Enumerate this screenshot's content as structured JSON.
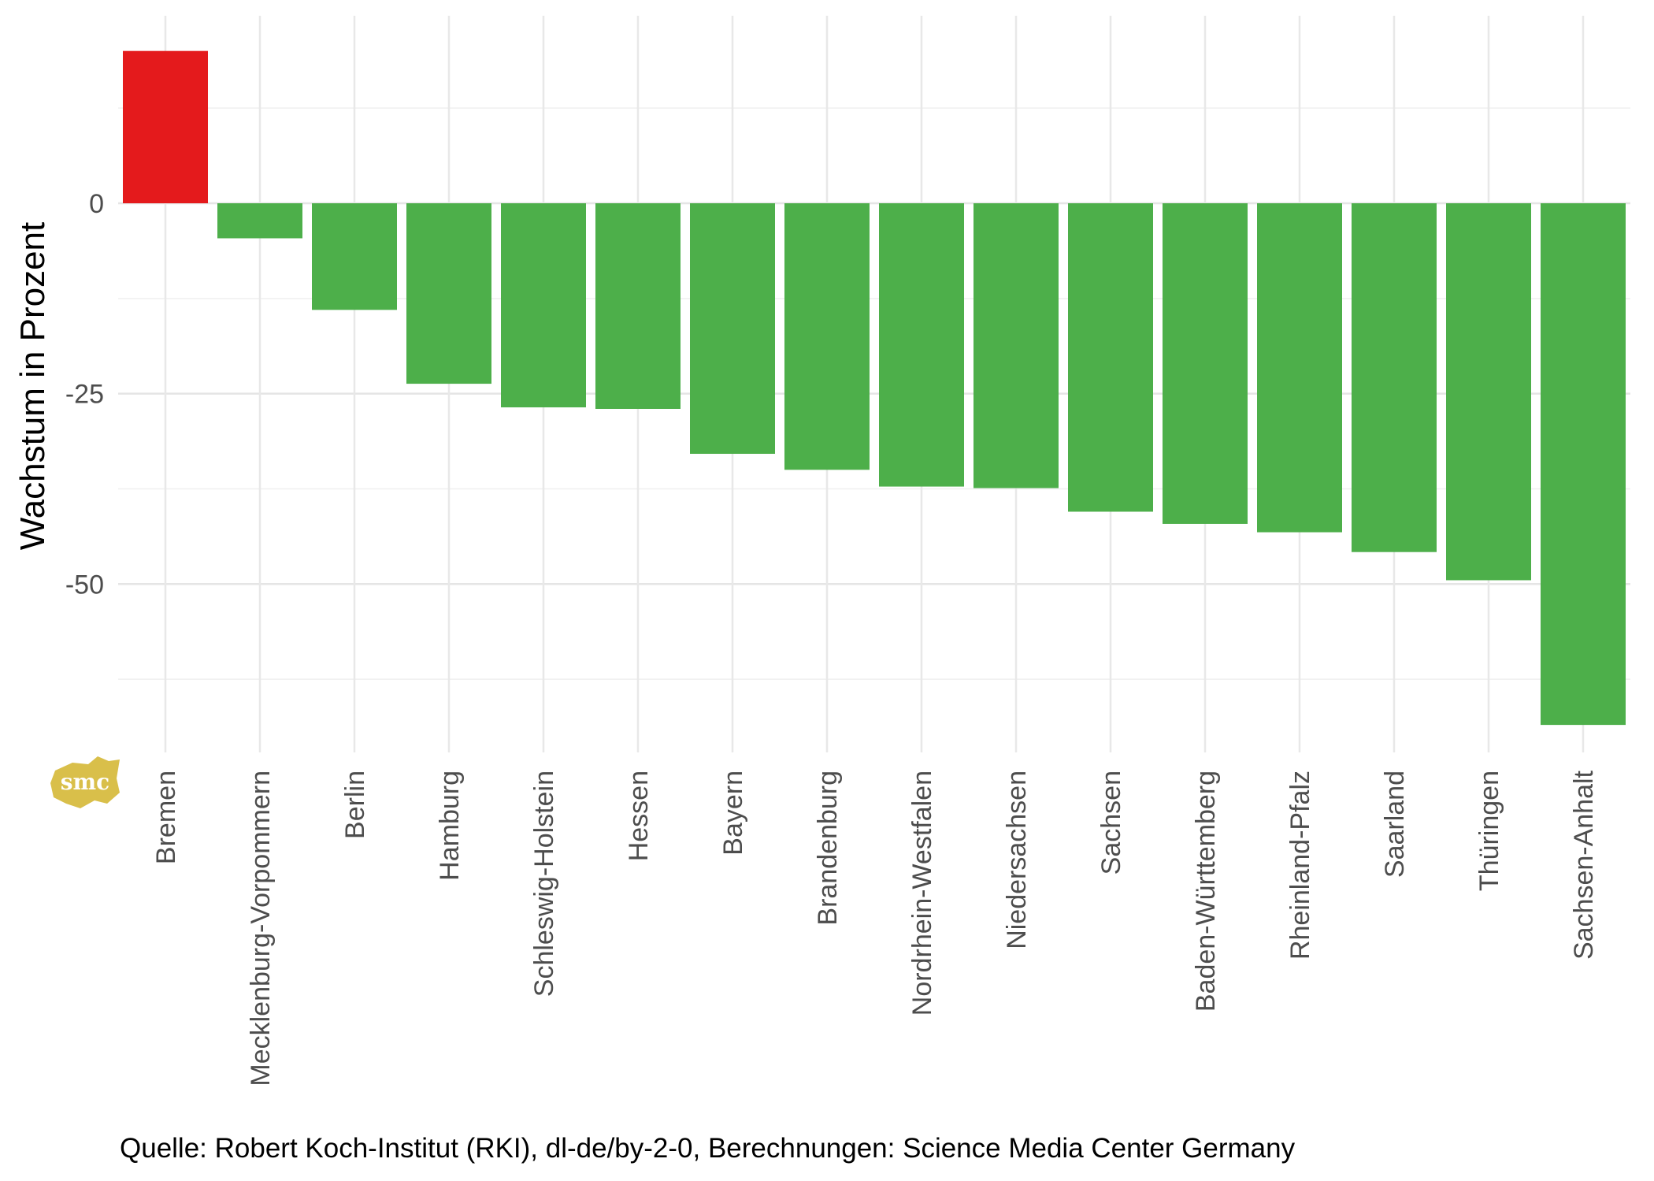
{
  "chart_data": {
    "type": "bar",
    "ylabel": "Wachstum in Prozent",
    "xlabel": "",
    "ylim": [
      -72,
      22
    ],
    "yticks": [
      0,
      -25,
      -50
    ],
    "grid": true,
    "categories": [
      "Bremen",
      "Mecklenburg-Vorpommern",
      "Berlin",
      "Hamburg",
      "Schleswig-Holstein",
      "Hessen",
      "Bayern",
      "Brandenburg",
      "Nordrhein-Westfalen",
      "Niedersachsen",
      "Sachsen",
      "Baden-Württemberg",
      "Rheinland-Pfalz",
      "Saarland",
      "Thüringen",
      "Sachsen-Anhalt"
    ],
    "values": [
      20,
      -4.6,
      -14,
      -23.7,
      -26.8,
      -27,
      -32.9,
      -35,
      -37.2,
      -37.4,
      -40.5,
      -42.1,
      -43.2,
      -45.8,
      -49.5,
      -68.5
    ],
    "colors": {
      "positive": "#e41a1c",
      "negative": "#4daf4a"
    }
  },
  "caption": "Quelle: Robert Koch-Institut (RKI), dl-de/by-2-0, Berechnungen: Science Media Center Germany",
  "logo": {
    "text": "smc",
    "color": "#d9bf4a",
    "icon": "smc-logo"
  }
}
